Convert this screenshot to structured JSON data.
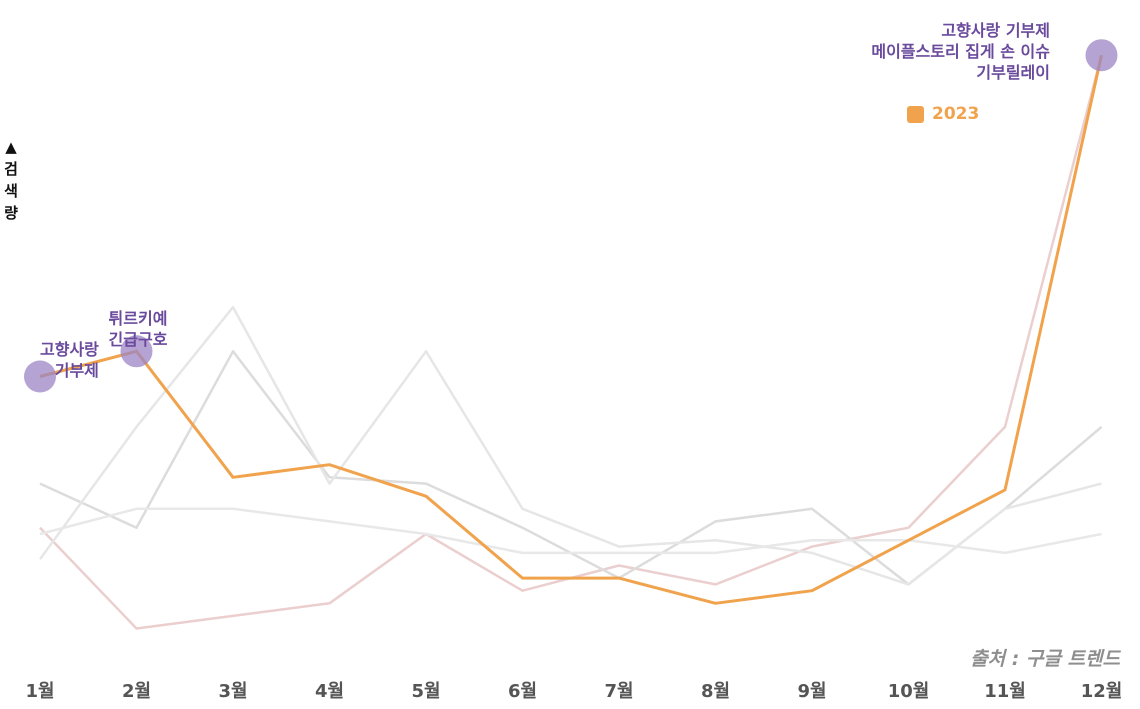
{
  "chart_data": {
    "type": "line",
    "title": "",
    "xlabel": "",
    "ylabel": "▲ 검색량",
    "categories": [
      "1월",
      "2월",
      "3월",
      "4월",
      "5월",
      "6월",
      "7월",
      "8월",
      "9월",
      "10월",
      "11월",
      "12월"
    ],
    "ylim": [
      0,
      100
    ],
    "grid": false,
    "legend_position": "top-right",
    "series": [
      {
        "name": "2023",
        "color": "#f0a34c",
        "highlight": true,
        "values": [
          45,
          49,
          29,
          31,
          26,
          13,
          13,
          9,
          11,
          19,
          27,
          96
        ]
      },
      {
        "name": "",
        "color": "#ebcfcf",
        "values": [
          21,
          5,
          7,
          9,
          20,
          11,
          15,
          12,
          18,
          21,
          37,
          96
        ]
      },
      {
        "name": "",
        "color": "#dcdcdc",
        "values": [
          28,
          21,
          49,
          29,
          28,
          21,
          13,
          22,
          24,
          12,
          24,
          37
        ]
      },
      {
        "name": "",
        "color": "#e6e6e6",
        "values": [
          16,
          37,
          56,
          28,
          49,
          24,
          18,
          19,
          17,
          12,
          24,
          28
        ]
      },
      {
        "name": "",
        "color": "#e8e8e8",
        "values": [
          20,
          24,
          24,
          22,
          20,
          17,
          17,
          17,
          19,
          19,
          17,
          20
        ]
      }
    ],
    "markers": [
      {
        "series": "2023",
        "index": 0,
        "color": "#9b84c4"
      },
      {
        "series": "2023",
        "index": 1,
        "color": "#9b84c4"
      },
      {
        "series": "2023",
        "index": 11,
        "color": "#9b84c4"
      }
    ],
    "annotations": [
      {
        "index": 0,
        "lines": [
          "고향사랑",
          "기부제"
        ]
      },
      {
        "index": 1,
        "lines": [
          "튀르키예",
          "긴급구호"
        ]
      },
      {
        "index": 11,
        "lines": [
          "고향사랑 기부제",
          "메이플스토리 집게 손 이슈",
          "기부릴레이"
        ]
      }
    ],
    "source": "출처 : 구글 트렌드"
  },
  "colors": {
    "accent": "#f0a34c",
    "marker": "#9b84c4",
    "annotation_text": "#6a4a9c"
  }
}
